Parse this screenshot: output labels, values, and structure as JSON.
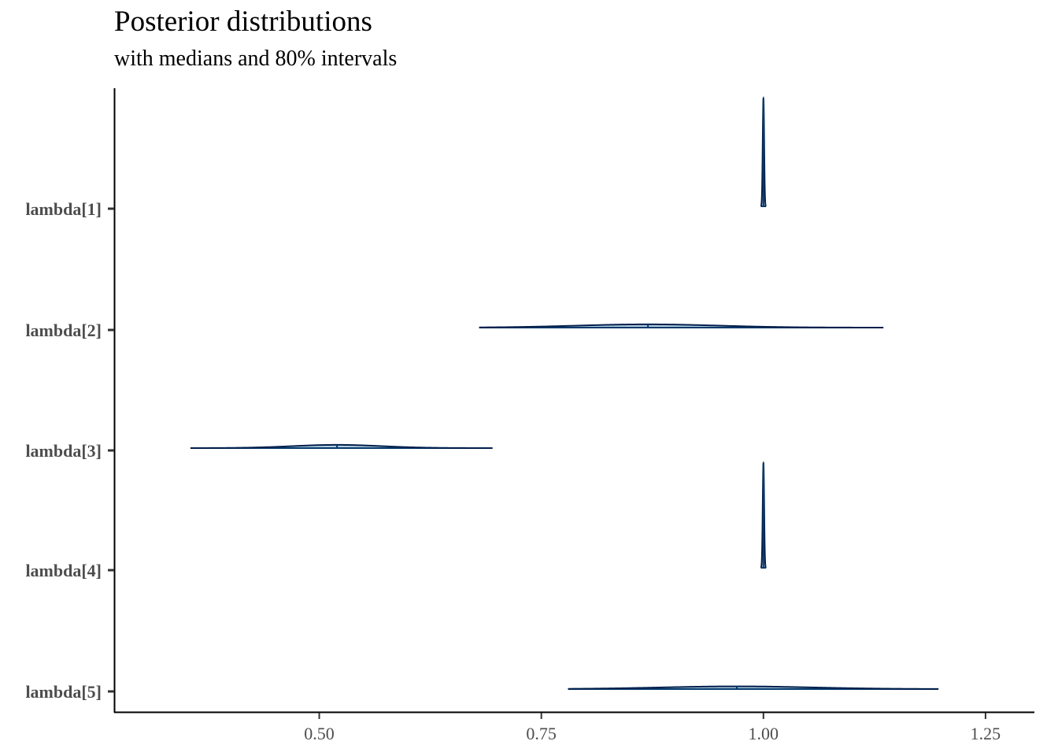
{
  "chart_data": {
    "type": "area",
    "title": "Posterior distributions",
    "subtitle": "with medians and 80% intervals",
    "xlabel": "",
    "ylabel": "",
    "xlim": [
      0.27,
      1.305
    ],
    "xticks": [
      {
        "value": 0.5,
        "label": "0.50"
      },
      {
        "value": 0.75,
        "label": "0.75"
      },
      {
        "value": 1.0,
        "label": "1.00"
      },
      {
        "value": 1.25,
        "label": "1.25"
      }
    ],
    "grid": false,
    "legend": "none",
    "colors": {
      "fill": "#b3cde0",
      "outline": "#011f4b",
      "line": "#03396c"
    },
    "parameters": [
      {
        "label": "lambda[1]",
        "median": 1.0,
        "interval80": [
          0.999,
          1.001
        ],
        "range": [
          0.997,
          1.003
        ],
        "sd": 0.0008,
        "peak_height": 1.0
      },
      {
        "label": "lambda[2]",
        "median": 0.87,
        "interval80": [
          0.765,
          0.975
        ],
        "range": [
          0.68,
          1.135
        ],
        "sd": 0.08,
        "peak_height": 0.03
      },
      {
        "label": "lambda[3]",
        "median": 0.52,
        "interval80": [
          0.455,
          0.585
        ],
        "range": [
          0.355,
          0.695
        ],
        "sd": 0.05,
        "peak_height": 0.03
      },
      {
        "label": "lambda[4]",
        "median": 1.0,
        "interval80": [
          0.999,
          1.001
        ],
        "range": [
          0.997,
          1.003
        ],
        "sd": 0.0008,
        "peak_height": 0.97
      },
      {
        "label": "lambda[5]",
        "median": 0.97,
        "interval80": [
          0.855,
          1.075
        ],
        "range": [
          0.78,
          1.197
        ],
        "sd": 0.085,
        "peak_height": 0.025
      }
    ]
  }
}
